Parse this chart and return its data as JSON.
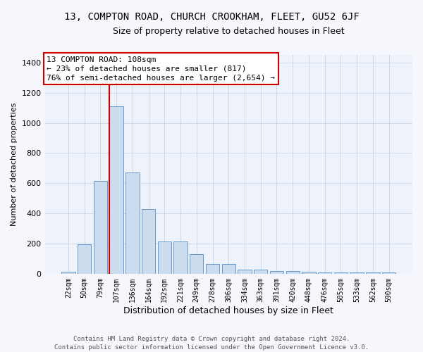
{
  "title": "13, COMPTON ROAD, CHURCH CROOKHAM, FLEET, GU52 6JF",
  "subtitle": "Size of property relative to detached houses in Fleet",
  "xlabel": "Distribution of detached houses by size in Fleet",
  "ylabel": "Number of detached properties",
  "footer1": "Contains HM Land Registry data © Crown copyright and database right 2024.",
  "footer2": "Contains public sector information licensed under the Open Government Licence v3.0.",
  "bin_labels": [
    "22sqm",
    "50sqm",
    "79sqm",
    "107sqm",
    "136sqm",
    "164sqm",
    "192sqm",
    "221sqm",
    "249sqm",
    "278sqm",
    "306sqm",
    "334sqm",
    "363sqm",
    "391sqm",
    "420sqm",
    "448sqm",
    "476sqm",
    "505sqm",
    "533sqm",
    "562sqm",
    "590sqm"
  ],
  "bar_heights": [
    15,
    195,
    615,
    1110,
    670,
    430,
    215,
    215,
    130,
    65,
    65,
    28,
    28,
    20,
    20,
    15,
    10,
    10,
    10,
    10,
    10
  ],
  "bar_color": "#ccdcef",
  "bar_edge_color": "#6699cc",
  "annotation_line1": "13 COMPTON ROAD: 108sqm",
  "annotation_line2": "← 23% of detached houses are smaller (817)",
  "annotation_line3": "76% of semi-detached houses are larger (2,654) →",
  "annotation_box_color": "#ffffff",
  "annotation_box_edge_color": "#cc0000",
  "vline_color": "#cc0000",
  "vline_x": 2.575,
  "ylim": [
    0,
    1450
  ],
  "yticks": [
    0,
    200,
    400,
    600,
    800,
    1000,
    1200,
    1400
  ],
  "grid_color": "#ccd8e8",
  "bg_color": "#eef2fa",
  "fig_bg_color": "#f5f7fd",
  "title_fontsize": 10,
  "subtitle_fontsize": 9,
  "annotation_fontsize": 8,
  "ylabel_fontsize": 8,
  "xlabel_fontsize": 9,
  "tick_fontsize": 7,
  "footer_fontsize": 6.5
}
